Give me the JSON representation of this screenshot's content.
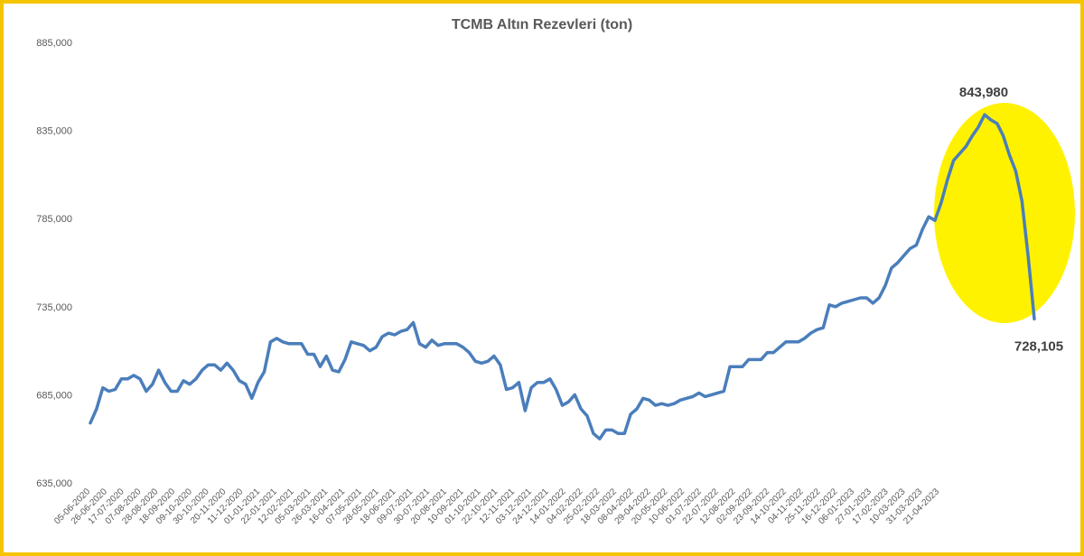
{
  "chart_data": {
    "type": "line",
    "title": "TCMB Altın Rezevleri (ton)",
    "xlabel": "",
    "ylabel": "",
    "ylim": [
      635000,
      885000
    ],
    "yticks": [
      "635,000",
      "685,000",
      "735,000",
      "785,000",
      "835,000",
      "885,000"
    ],
    "grid": false,
    "legend": "none",
    "x_tick_labels": [
      "05-06-2020",
      "26-06-2020",
      "17-07-2020",
      "07-08-2020",
      "28-08-2020",
      "18-09-2020",
      "09-10-2020",
      "30-10-2020",
      "20-11-2020",
      "11-12-2020",
      "01-01-2021",
      "22-01-2021",
      "12-02-2021",
      "05-03-2021",
      "26-03-2021",
      "16-04-2021",
      "07-05-2021",
      "28-05-2021",
      "18-06-2021",
      "09-07-2021",
      "30-07-2021",
      "20-08-2021",
      "10-09-2021",
      "01-10-2021",
      "22-10-2021",
      "12-11-2021",
      "03-12-2021",
      "24-12-2021",
      "14-01-2022",
      "04-02-2022",
      "25-02-2022",
      "18-03-2022",
      "08-04-2022",
      "29-04-2022",
      "20-05-2022",
      "10-06-2022",
      "01-07-2022",
      "22-07-2022",
      "12-08-2022",
      "02-09-2022",
      "23-09-2022",
      "14-10-2022",
      "04-11-2022",
      "25-11-2022",
      "16-12-2022",
      "06-01-2023",
      "27-01-2023",
      "17-02-2023",
      "10-03-2023",
      "31-03-2023",
      "21-04-2023"
    ],
    "series": [
      {
        "color": "#4a7ebb",
        "values": [
          669000,
          677000,
          689000,
          687000,
          688000,
          694000,
          694000,
          696000,
          694000,
          687000,
          691000,
          699000,
          692000,
          687000,
          687000,
          693000,
          691000,
          694000,
          699000,
          702000,
          702000,
          699000,
          703000,
          699000,
          693000,
          691000,
          683000,
          692000,
          698000,
          715000,
          717000,
          715000,
          714000,
          714000,
          714000,
          708000,
          708000,
          701000,
          707000,
          699000,
          698000,
          705000,
          715000,
          714000,
          713000,
          710000,
          712000,
          718000,
          720000,
          719000,
          721000,
          722000,
          726000,
          714000,
          712000,
          716000,
          713000,
          714000,
          714000,
          714000,
          712000,
          709000,
          704000,
          703000,
          704000,
          707000,
          702000,
          688000,
          689000,
          692000,
          676000,
          689000,
          692000,
          692000,
          694000,
          688000,
          679000,
          681000,
          685000,
          677000,
          673000,
          663000,
          660000,
          665000,
          665000,
          663000,
          663000,
          674000,
          677000,
          683000,
          682000,
          679000,
          680000,
          679000,
          680000,
          682000,
          683000,
          684000,
          686000,
          684000,
          685000,
          686000,
          687000,
          701000,
          701000,
          701000,
          705000,
          705000,
          705000,
          709000,
          709000,
          712000,
          715000,
          715000,
          715000,
          717000,
          720000,
          722000,
          723000,
          736000,
          735000,
          737000,
          738000,
          739000,
          740000,
          740000,
          737000,
          740000,
          747000,
          757000,
          760000,
          764000,
          768000,
          770000,
          779000,
          786000,
          784000,
          794000,
          807000,
          818000,
          822000,
          826000,
          832000,
          837000,
          843980,
          841000,
          839000,
          832000,
          821000,
          812000,
          795000,
          764000,
          728105
        ]
      }
    ],
    "annotations": [
      {
        "label": "843,980",
        "value": 843980
      },
      {
        "label": "728,105",
        "value": 728105
      }
    ],
    "highlight_color": "#fff200"
  }
}
